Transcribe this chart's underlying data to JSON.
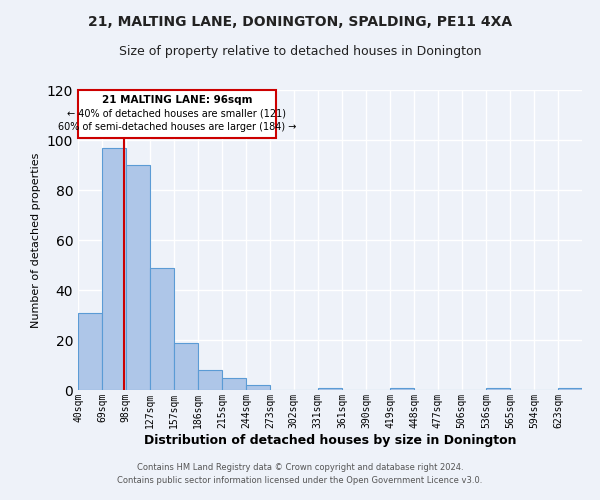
{
  "title": "21, MALTING LANE, DONINGTON, SPALDING, PE11 4XA",
  "subtitle": "Size of property relative to detached houses in Donington",
  "xlabel": "Distribution of detached houses by size in Donington",
  "ylabel": "Number of detached properties",
  "bin_labels": [
    "40sqm",
    "69sqm",
    "98sqm",
    "127sqm",
    "157sqm",
    "186sqm",
    "215sqm",
    "244sqm",
    "273sqm",
    "302sqm",
    "331sqm",
    "361sqm",
    "390sqm",
    "419sqm",
    "448sqm",
    "477sqm",
    "506sqm",
    "536sqm",
    "565sqm",
    "594sqm",
    "623sqm"
  ],
  "bin_edges": [
    40,
    69,
    98,
    127,
    157,
    186,
    215,
    244,
    273,
    302,
    331,
    361,
    390,
    419,
    448,
    477,
    506,
    536,
    565,
    594,
    623,
    652
  ],
  "bar_heights": [
    31,
    97,
    90,
    49,
    19,
    8,
    5,
    2,
    0,
    0,
    1,
    0,
    0,
    1,
    0,
    0,
    0,
    1,
    0,
    0,
    1
  ],
  "bar_color": "#aec6e8",
  "bar_edge_color": "#5b9bd5",
  "property_line_x": 96,
  "property_line_color": "#cc0000",
  "annotation_title": "21 MALTING LANE: 96sqm",
  "annotation_line1": "← 40% of detached houses are smaller (121)",
  "annotation_line2": "60% of semi-detached houses are larger (184) →",
  "annotation_box_color": "#cc0000",
  "ylim": [
    0,
    120
  ],
  "yticks": [
    0,
    20,
    40,
    60,
    80,
    100,
    120
  ],
  "footer_line1": "Contains HM Land Registry data © Crown copyright and database right 2024.",
  "footer_line2": "Contains public sector information licensed under the Open Government Licence v3.0.",
  "background_color": "#eef2f9",
  "grid_color": "#ffffff"
}
